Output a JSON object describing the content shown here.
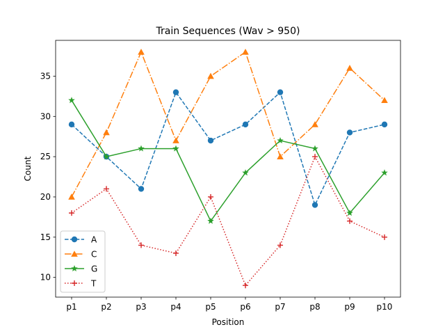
{
  "chart_data": {
    "type": "line",
    "title": "Train Sequences (Wav > 950)",
    "xlabel": "Position",
    "ylabel": "Count",
    "categories": [
      "p1",
      "p2",
      "p3",
      "p4",
      "p5",
      "p6",
      "p7",
      "p8",
      "p9",
      "p10"
    ],
    "ylim": [
      7.55,
      39.45
    ],
    "yticks": [
      10,
      15,
      20,
      25,
      30,
      35
    ],
    "grid": false,
    "legend": "lower-left",
    "series": [
      {
        "name": "A",
        "color": "#1f77b4",
        "linestyle": "dashed",
        "marker": "circle",
        "values": [
          29,
          25,
          21,
          33,
          27,
          29,
          33,
          19,
          28,
          29
        ]
      },
      {
        "name": "C",
        "color": "#ff7f0e",
        "linestyle": "dashdot",
        "marker": "triangle",
        "values": [
          20,
          28,
          38,
          27,
          35,
          38,
          25,
          29,
          36,
          32
        ]
      },
      {
        "name": "G",
        "color": "#2ca02c",
        "linestyle": "solid",
        "marker": "star",
        "values": [
          32,
          25,
          26,
          26,
          17,
          23,
          27,
          26,
          18,
          23
        ]
      },
      {
        "name": "T",
        "color": "#d62728",
        "linestyle": "dotted",
        "marker": "plus",
        "values": [
          18,
          21,
          14,
          13,
          20,
          9,
          14,
          25,
          17,
          15
        ]
      }
    ]
  }
}
